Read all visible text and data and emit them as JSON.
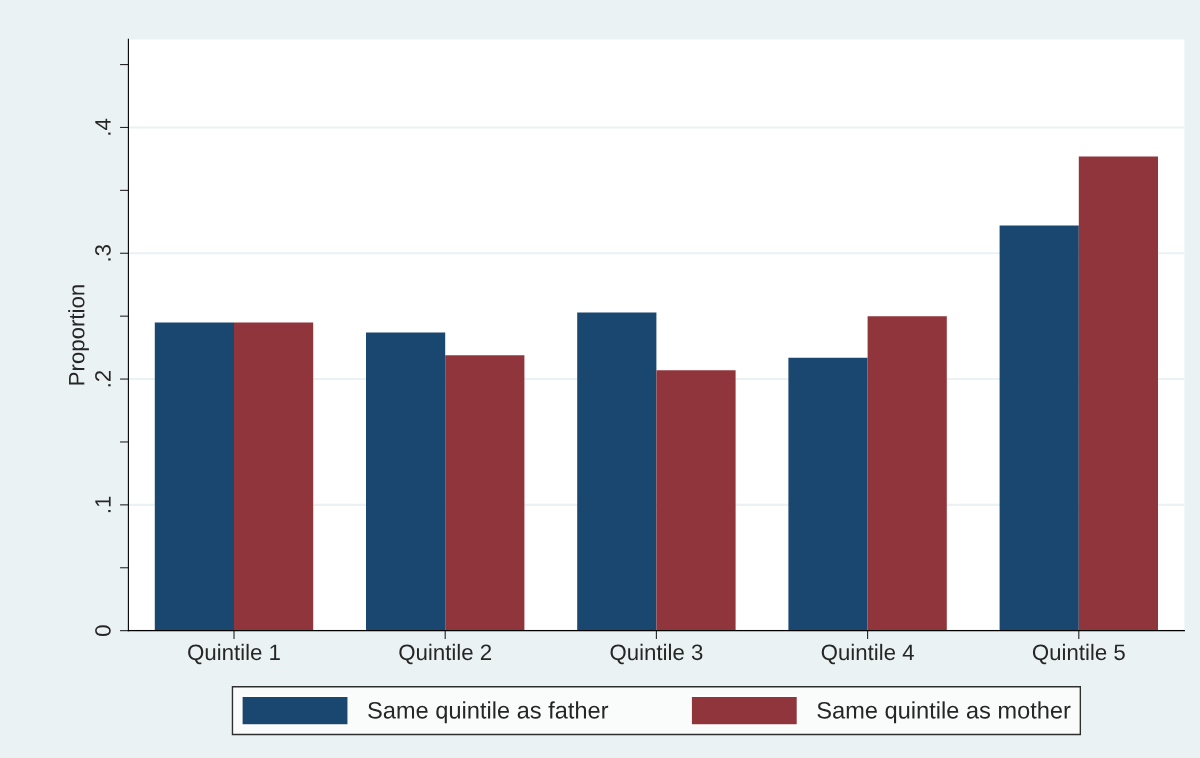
{
  "chart_data": {
    "type": "bar",
    "ylabel": "Proportion",
    "categories": [
      "Quintile 1",
      "Quintile 2",
      "Quintile 3",
      "Quintile 4",
      "Quintile 5"
    ],
    "series": [
      {
        "name": "Same quintile as father",
        "color": "#1a476f",
        "values": [
          0.245,
          0.237,
          0.253,
          0.217,
          0.322
        ]
      },
      {
        "name": "Same quintile as mother",
        "color": "#90353b",
        "values": [
          0.245,
          0.219,
          0.207,
          0.25,
          0.377
        ]
      }
    ],
    "ylim": [
      0,
      0.47
    ],
    "yticks": [
      {
        "value": 0,
        "label": "0"
      },
      {
        "value": 0.05,
        "label": null
      },
      {
        "value": 0.1,
        "label": ".1"
      },
      {
        "value": 0.15,
        "label": null
      },
      {
        "value": 0.2,
        "label": ".2"
      },
      {
        "value": 0.25,
        "label": null
      },
      {
        "value": 0.3,
        "label": ".3"
      },
      {
        "value": 0.35,
        "label": null
      },
      {
        "value": 0.4,
        "label": ".4"
      },
      {
        "value": 0.45,
        "label": null
      }
    ],
    "grid": "y",
    "legend": "bottom"
  }
}
